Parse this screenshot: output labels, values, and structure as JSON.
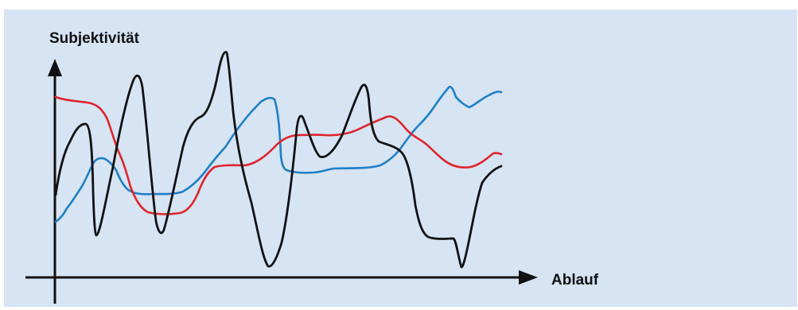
{
  "labels": {
    "y_axis": "Subjektivität",
    "x_axis": "Ablauf"
  },
  "colors": {
    "background": "#d6e4f4",
    "axis": "#111111",
    "curve_black": "#111111",
    "curve_red": "#e0242b",
    "curve_blue": "#1f7fc8"
  }
}
